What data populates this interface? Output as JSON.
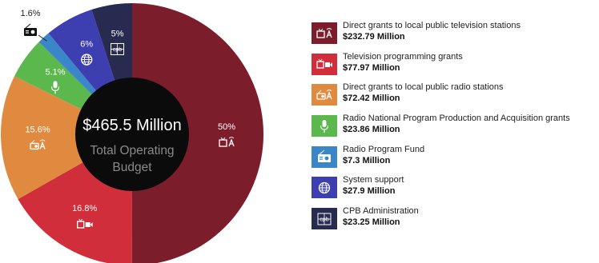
{
  "chart_data": {
    "type": "pie",
    "donut": true,
    "center": {
      "total": "$465.5 Million",
      "line2": "Total Operating",
      "line3": "Budget"
    },
    "slices": [
      {
        "label": "Direct grants to local public television stations",
        "value": 232.79,
        "display_value": "$232.79 Million",
        "percent": "50%",
        "color": "#7b1d2b",
        "icon": "tv-radio-icon"
      },
      {
        "label": "Television programming grants",
        "value": 77.97,
        "display_value": "$77.97 Million",
        "percent": "16.8%",
        "color": "#cf2e3a",
        "icon": "tv-camera-icon"
      },
      {
        "label": "Direct grants to local public radio stations",
        "value": 72.42,
        "display_value": "$72.42 Million",
        "percent": "15.6%",
        "color": "#e08a3f",
        "icon": "radio-broadcast-icon"
      },
      {
        "label": "Radio National Program Production and Acquisition grants",
        "value": 23.86,
        "display_value": "$23.86 Million",
        "percent": "5.1%",
        "color": "#5bb84c",
        "icon": "microphone-icon"
      },
      {
        "label": "Radio Program Fund",
        "value": 7.3,
        "display_value": "$7.3 Million",
        "percent": "1.6%",
        "color": "#3a86c8",
        "icon": "radio-icon"
      },
      {
        "label": "System support",
        "value": 27.9,
        "display_value": "$27.9 Million",
        "percent": "6%",
        "color": "#3d3eb0",
        "icon": "globe-icon"
      },
      {
        "label": "CPB Administration",
        "value": 23.25,
        "display_value": "$23.25 Million",
        "percent": "5%",
        "color": "#272b4f",
        "icon": "cpb-logo-icon"
      }
    ]
  }
}
